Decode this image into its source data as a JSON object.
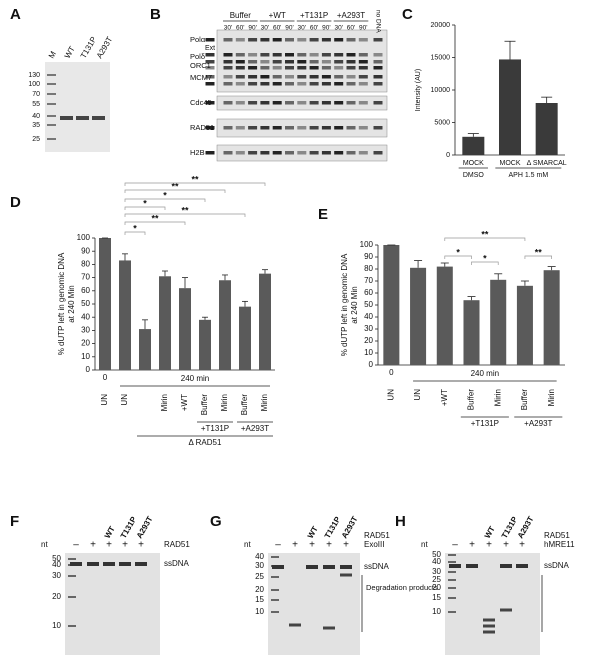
{
  "panels": [
    "A",
    "B",
    "C",
    "D",
    "E",
    "F",
    "G",
    "H"
  ],
  "gel_a": {
    "lanes": [
      "M",
      "WT",
      "T131P",
      "A293T"
    ],
    "markers": [
      130,
      100,
      70,
      55,
      40,
      35,
      25
    ]
  },
  "gel_b": {
    "ext": "Ext",
    "conditions": [
      "Buffer",
      "+WT",
      "+T131P",
      "+A293T"
    ],
    "no_dna": "no DNA",
    "times": [
      "30'",
      "60'",
      "90'",
      "30'",
      "60'",
      "90'",
      "30'",
      "60'",
      "90'",
      "30'",
      "60'",
      "90'"
    ],
    "rows": [
      "Polα",
      "Polδ",
      "ORC1",
      "MCM7",
      "Cdc45",
      "RAD51",
      "H2B"
    ]
  },
  "gel_f": {
    "unit": "nt",
    "markers": [
      50,
      40,
      30,
      20,
      10
    ],
    "signs": [
      "–",
      "+",
      "+",
      "+",
      "+"
    ],
    "lanes": [
      "WT",
      "T131P",
      "A293T"
    ],
    "protein": "RAD51",
    "band": "ssDNA"
  },
  "gel_g": {
    "unit": "nt",
    "markers": [
      40,
      30,
      25,
      20,
      15,
      10
    ],
    "signs": [
      "–",
      "+",
      "+",
      "+",
      "+"
    ],
    "lanes": [
      "WT",
      "T131P",
      "A293T"
    ],
    "protein": "RAD51",
    "enzyme": "ExoIII",
    "band": "ssDNA",
    "products": "Degradation products"
  },
  "gel_h": {
    "unit": "nt",
    "markers": [
      50,
      40,
      30,
      25,
      20,
      15,
      10
    ],
    "signs": [
      "–",
      "+",
      "+",
      "+",
      "+"
    ],
    "lanes": [
      "WT",
      "T131P",
      "A293T"
    ],
    "protein": "RAD51",
    "enzyme": "hMRE11",
    "band": "ssDNA"
  },
  "chart_data": [
    {
      "type": "bar",
      "ylabel": "Intensity (AU)",
      "categories": [
        "MOCK",
        "MOCK",
        "Δ SMARCAL"
      ],
      "values": [
        2800,
        14700,
        8000
      ],
      "errors": [
        500,
        2800,
        900
      ],
      "ylim": [
        0,
        20000
      ],
      "yticks": [
        0,
        5000,
        10000,
        15000,
        20000
      ],
      "color": "#3a3a3a",
      "group_labels": [
        "DMSO",
        "APH 1.5 mM"
      ]
    },
    {
      "type": "bar",
      "ylabel_lines": [
        "% dUTP left in genomic DNA",
        "at 240 Min"
      ],
      "categories": [
        "UN",
        "UN",
        null,
        "Mirin",
        "+WT",
        "Buffer",
        "Mirin",
        "Buffer",
        "Mirin"
      ],
      "values": [
        100,
        83,
        31,
        71,
        62,
        38,
        68,
        48,
        73
      ],
      "errors": [
        0,
        5,
        7,
        4,
        8,
        2,
        4,
        4,
        3
      ],
      "ylim": [
        0,
        100
      ],
      "yticks": [
        0,
        10,
        20,
        30,
        40,
        50,
        60,
        70,
        80,
        90,
        100
      ],
      "color": "#5a5a5a",
      "time_labels": [
        "0",
        "240 min"
      ],
      "group_labels": [
        "+T131P",
        "+A293T",
        "Δ RAD51"
      ],
      "annotations": [
        "*",
        "**",
        "**",
        "*",
        "*",
        "**",
        "**"
      ]
    },
    {
      "type": "bar",
      "ylabel_lines": [
        "% dUTP left in genomic DNA",
        "at 240 Min"
      ],
      "categories": [
        "UN",
        "UN",
        "+WT",
        "Buffer",
        "Mirin",
        "Buffer",
        "Mirin"
      ],
      "values": [
        100,
        81,
        82,
        54,
        71,
        66,
        79
      ],
      "errors": [
        0,
        6,
        3,
        3,
        5,
        4,
        3
      ],
      "ylim": [
        0,
        100
      ],
      "yticks": [
        0,
        10,
        20,
        30,
        40,
        50,
        60,
        70,
        80,
        90,
        100
      ],
      "color": "#5a5a5a",
      "time_labels": [
        "0",
        "240 min"
      ],
      "group_labels": [
        "+T131P",
        "+A293T"
      ],
      "annotations": [
        "**",
        "*",
        "*",
        "**"
      ]
    }
  ]
}
